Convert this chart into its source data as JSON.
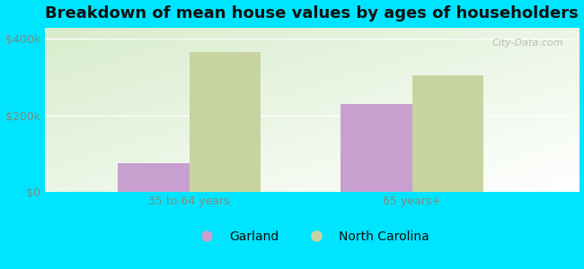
{
  "title": "Breakdown of mean house values by ages of householders",
  "categories": [
    "35 to 64 years",
    "65 years+"
  ],
  "garland_values": [
    75000,
    230000
  ],
  "nc_values": [
    365000,
    305000
  ],
  "garland_color": "#c8a0d0",
  "nc_color": "#c8d4a0",
  "background_color": "#00e5ff",
  "gradient_color_topleft": "#d8edcc",
  "gradient_color_white": "#f5fff5",
  "yticks": [
    0,
    200000,
    400000
  ],
  "ytick_labels": [
    "$0",
    "$200k",
    "$400k"
  ],
  "ylim": [
    0,
    430000
  ],
  "legend_garland": "Garland",
  "legend_nc": "North Carolina",
  "bar_width": 0.32,
  "watermark": "City-Data.com",
  "title_fontsize": 13,
  "tick_fontsize": 9,
  "legend_fontsize": 10,
  "tick_color": "#888877"
}
